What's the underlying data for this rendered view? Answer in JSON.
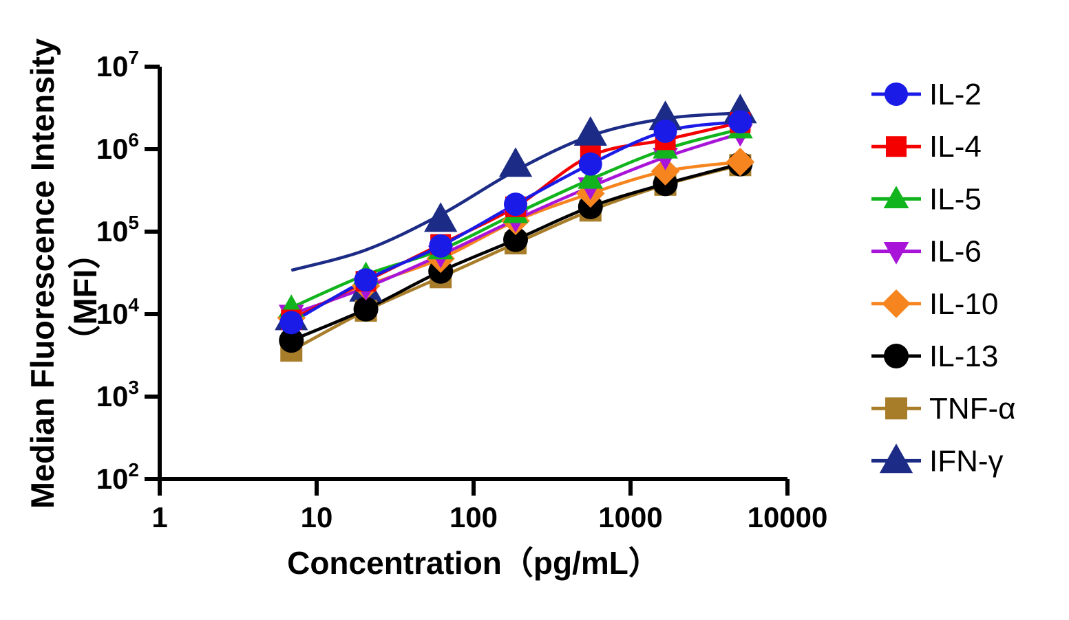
{
  "chart_data": {
    "type": "scatter",
    "title": "",
    "xlabel": "Concentration（pg/mL）",
    "ylabel_line1": "Median Fluorescence Intensity",
    "ylabel_line2": "（MFI）",
    "x_scale": "log",
    "y_scale": "log",
    "xlim": [
      1,
      10000
    ],
    "ylim": [
      100,
      10000000
    ],
    "x_tick_labels": [
      "1",
      "10",
      "100",
      "1000",
      "10000"
    ],
    "x_tick_values": [
      1,
      10,
      100,
      1000,
      10000
    ],
    "y_tick_base": "10",
    "y_tick_exponents": [
      2,
      3,
      4,
      5,
      6,
      7
    ],
    "legend_position": "right",
    "grid": false,
    "x": [
      6.9,
      20.6,
      61.7,
      185.2,
      555.6,
      1666.7,
      5000
    ],
    "series": [
      {
        "name": "IL-2",
        "color": "#1b1be8",
        "marker": "circle",
        "size": 17,
        "values": [
          7900,
          26000,
          67000,
          215000,
          660000,
          1650000,
          2150000
        ]
      },
      {
        "name": "IL-4",
        "color": "#f40000",
        "marker": "square",
        "size": 15,
        "values": [
          8500,
          25000,
          70000,
          200000,
          830000,
          1300000,
          2100000
        ]
      },
      {
        "name": "IL-5",
        "color": "#12b41e",
        "marker": "triangle-up",
        "size": 16,
        "values": [
          12000,
          30000,
          60000,
          165000,
          430000,
          1000000,
          1750000
        ]
      },
      {
        "name": "IL-6",
        "color": "#a814d8",
        "marker": "triangle-down",
        "size": 16,
        "values": [
          10000,
          21000,
          52000,
          140000,
          350000,
          800000,
          1550000
        ]
      },
      {
        "name": "IL-10",
        "color": "#f6851f",
        "marker": "diamond",
        "size": 16,
        "values": [
          9000,
          22000,
          47000,
          135000,
          290000,
          540000,
          700000
        ]
      },
      {
        "name": "IL-13",
        "color": "#000000",
        "marker": "circle",
        "size": 18,
        "values": [
          4800,
          11500,
          33000,
          80000,
          200000,
          380000,
          660000
        ]
      },
      {
        "name": "TNF-α",
        "color": "#a87d2a",
        "marker": "square",
        "size": 16,
        "values": [
          3600,
          11000,
          28000,
          72000,
          180000,
          370000,
          640000
        ]
      },
      {
        "name": "IFN-γ",
        "color": "#1c2b85",
        "marker": "triangle-up",
        "size": 21,
        "values": [
          9000,
          20000,
          140000,
          650000,
          1550000,
          2400000,
          2900000
        ],
        "fit_curve_values": [
          34000,
          60000,
          160000,
          550000,
          1450000,
          2350000,
          2750000
        ]
      }
    ]
  }
}
